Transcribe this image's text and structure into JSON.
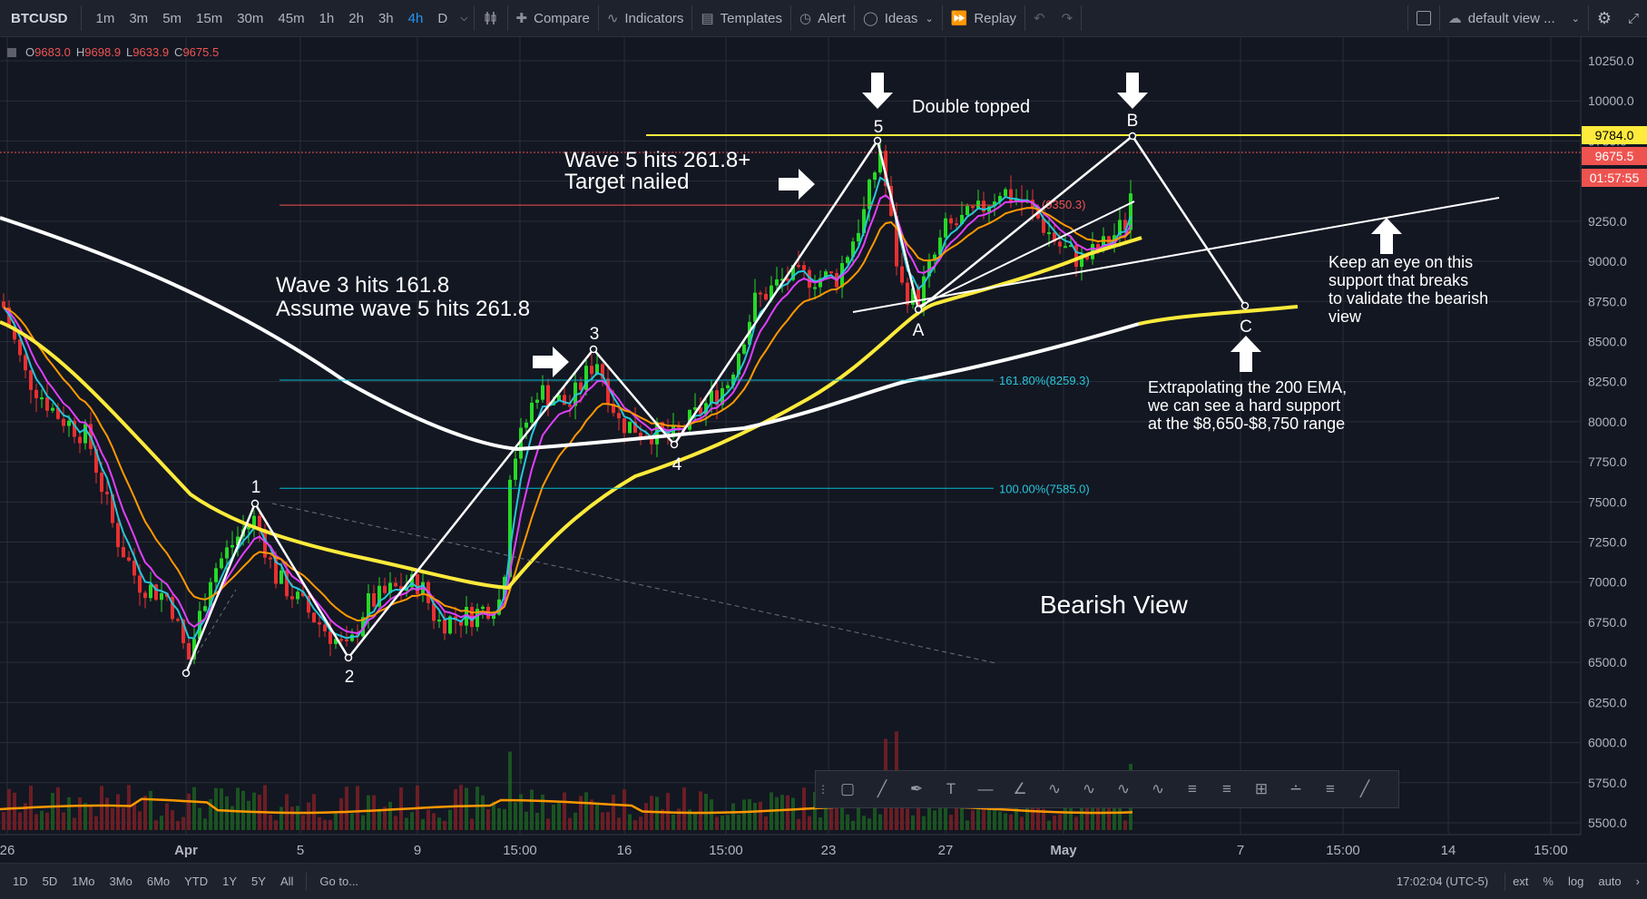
{
  "toolbar": {
    "symbol": "BTCUSD",
    "intervals": [
      "1m",
      "3m",
      "5m",
      "15m",
      "30m",
      "45m",
      "1h",
      "2h",
      "3h",
      "4h",
      "D"
    ],
    "active_interval": "4h",
    "compare": "Compare",
    "indicators": "Indicators",
    "templates": "Templates",
    "alert": "Alert",
    "ideas": "Ideas",
    "replay": "Replay",
    "layout": "default view ..."
  },
  "ohlc": {
    "o_label": "O",
    "o": "9683.0",
    "h_label": "H",
    "h": "9698.9",
    "l_label": "L",
    "l": "9633.9",
    "c_label": "C",
    "c": "9675.5"
  },
  "price_axis": {
    "ticks": [
      "10250.0",
      "10000.0",
      "9750.0",
      "9500.0",
      "9250.0",
      "9000.0",
      "8750.0",
      "8500.0",
      "8250.0",
      "8000.0",
      "7750.0",
      "7500.0",
      "7250.0",
      "7000.0",
      "6750.0",
      "6500.0",
      "6250.0",
      "6000.0",
      "5750.0",
      "5500.0"
    ],
    "labels": [
      {
        "text": "9784.0",
        "color": "#ffeb3b",
        "text_color": "#000000"
      },
      {
        "text": "9675.5",
        "color": "#ef5350",
        "text_color": "#ffffff"
      },
      {
        "text": "01:57:55",
        "color": "#ef5350",
        "text_color": "#ffffff"
      }
    ]
  },
  "time_axis": {
    "ticks": [
      "26",
      "Apr",
      "5",
      "9",
      "15:00",
      "16",
      "15:00",
      "23",
      "27",
      "May",
      "7",
      "15:00",
      "14",
      "15:00"
    ]
  },
  "annotations": {
    "wave3_line1": "Wave 3 hits 161.8",
    "wave3_line2": "Assume wave 5 hits 261.8",
    "wave5_line1": "Wave 5 hits 261.8+",
    "wave5_line2": "Target nailed",
    "double_top": "Double topped",
    "support_line1": "Keep an eye on this",
    "support_line2": "support that breaks",
    "support_line3": "to validate the bearish",
    "support_line4": "view",
    "ema_line1": "Extrapolating the 200 EMA,",
    "ema_line2": "we can see a hard support",
    "ema_line3": "at the $8,650-$8,750 range",
    "bearish": "Bearish View",
    "wave_labels": [
      "1",
      "2",
      "3",
      "4",
      "5",
      "A",
      "B",
      "C"
    ],
    "fib_161": "161.80%(8259.3)",
    "fib_100": "100.00%(7585.0)",
    "fib_top": "(9350.3)"
  },
  "bottom": {
    "ranges": [
      "1D",
      "5D",
      "1Mo",
      "3Mo",
      "6Mo",
      "YTD",
      "1Y",
      "5Y",
      "All"
    ],
    "goto": "Go to...",
    "clock": "17:02:04 (UTC-5)",
    "ext": "ext",
    "pct": "%",
    "log": "log",
    "auto": "auto"
  },
  "colors": {
    "background": "#131722",
    "bull": "#26d926",
    "bear": "#e83030",
    "ema200": "#ffffff",
    "ema100": "#ffeb3b",
    "accent": "#2196f3"
  }
}
